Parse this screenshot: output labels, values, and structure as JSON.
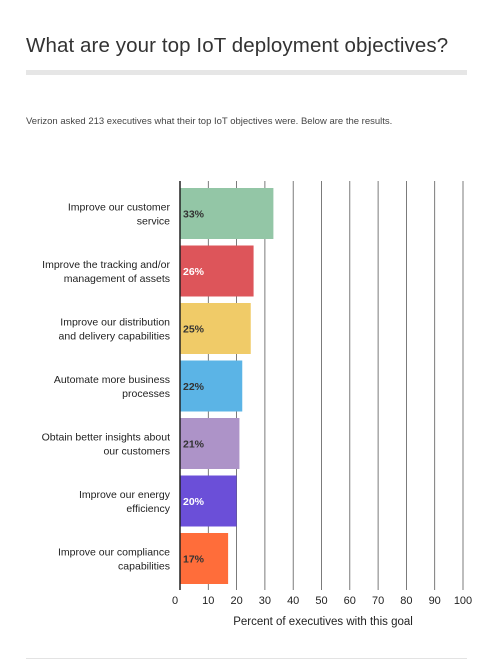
{
  "page": {
    "title": "What are your top IoT deployment objectives?",
    "subtitle": "Verizon asked 213 executives what their top IoT objectives were. Below are the results."
  },
  "chart_data": {
    "type": "bar",
    "orientation": "horizontal",
    "categories": [
      [
        "Improve our customer",
        "service"
      ],
      [
        "Improve the tracking and/or",
        "management of assets"
      ],
      [
        "Improve our distribution",
        "and delivery capabilities"
      ],
      [
        "Automate more business",
        "processes"
      ],
      [
        "Obtain better insights about",
        "our customers"
      ],
      [
        "Improve our energy",
        "efficiency"
      ],
      [
        "Improve our compliance",
        "capabilities"
      ]
    ],
    "values": [
      33,
      26,
      25,
      22,
      21,
      20,
      17
    ],
    "data_labels": [
      "33%",
      "26%",
      "25%",
      "22%",
      "21%",
      "20%",
      "17%"
    ],
    "colors": [
      "#93c6a6",
      "#dd555a",
      "#f0cb68",
      "#5bb4e6",
      "#ad93c8",
      "#6b4fd8",
      "#ff6d3a"
    ],
    "label_colors": [
      "#333333",
      "#ffffff",
      "#333333",
      "#333333",
      "#333333",
      "#ffffff",
      "#333333"
    ],
    "xlabel": "Percent of executives with this goal",
    "xlim": [
      0,
      100
    ],
    "xticks": [
      0,
      10,
      20,
      30,
      40,
      50,
      60,
      70,
      80,
      90,
      100
    ],
    "grid": true
  }
}
